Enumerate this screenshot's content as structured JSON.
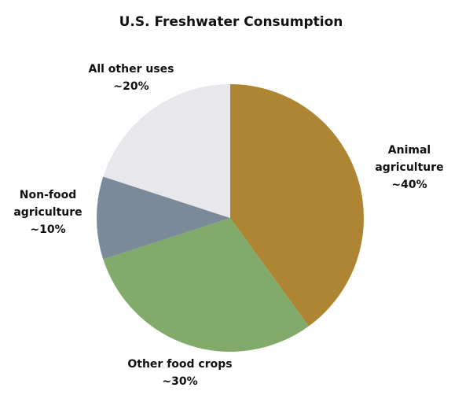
{
  "chart_data": {
    "type": "pie",
    "title": "U.S. Freshwater Consumption",
    "categories": [
      "Animal agriculture",
      "Other food crops",
      "Non-food agriculture",
      "All other uses"
    ],
    "values": [
      40,
      30,
      10,
      20
    ],
    "value_labels": [
      "~40%",
      "~30%",
      "~10%",
      "~20%"
    ],
    "colors": [
      "#ae8532",
      "#82aa6a",
      "#7b8a99",
      "#e8e8ec"
    ]
  }
}
